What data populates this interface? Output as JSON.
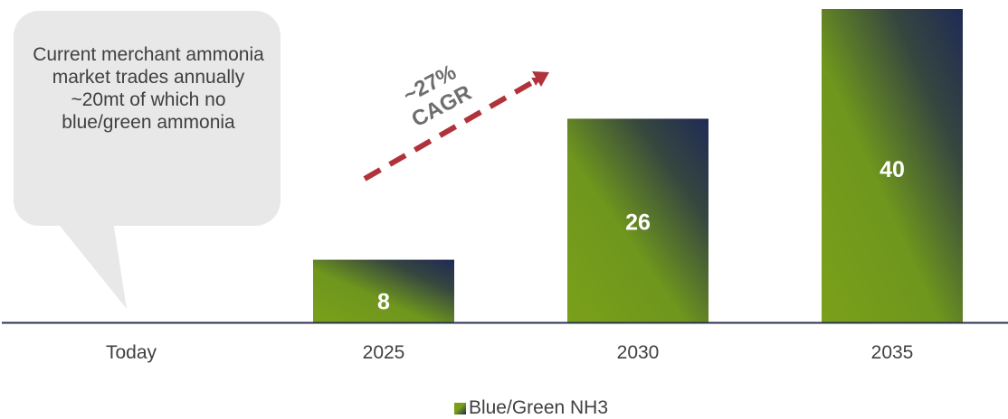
{
  "callout": {
    "text": "Current merchant ammonia market trades annually ~20mt of which no blue/green ammonia"
  },
  "annotation": {
    "line1": "~27%",
    "line2": "CAGR",
    "arrow_color": "#b0323a"
  },
  "colors": {
    "bar_light": "#7aa01a",
    "bar_dark": "#1f2a55",
    "axis": "#2b3350",
    "bubble": "#e8e8e8"
  },
  "chart_data": {
    "type": "bar",
    "categories": [
      "Today",
      "2025",
      "2030",
      "2035"
    ],
    "series": [
      {
        "name": "Blue/Green NH3",
        "values": [
          null,
          8,
          26,
          40
        ]
      }
    ],
    "value_labels": [
      "",
      "8",
      "26",
      "40"
    ],
    "ylim": [
      0,
      40
    ],
    "grid": false,
    "legend_position": "bottom"
  }
}
